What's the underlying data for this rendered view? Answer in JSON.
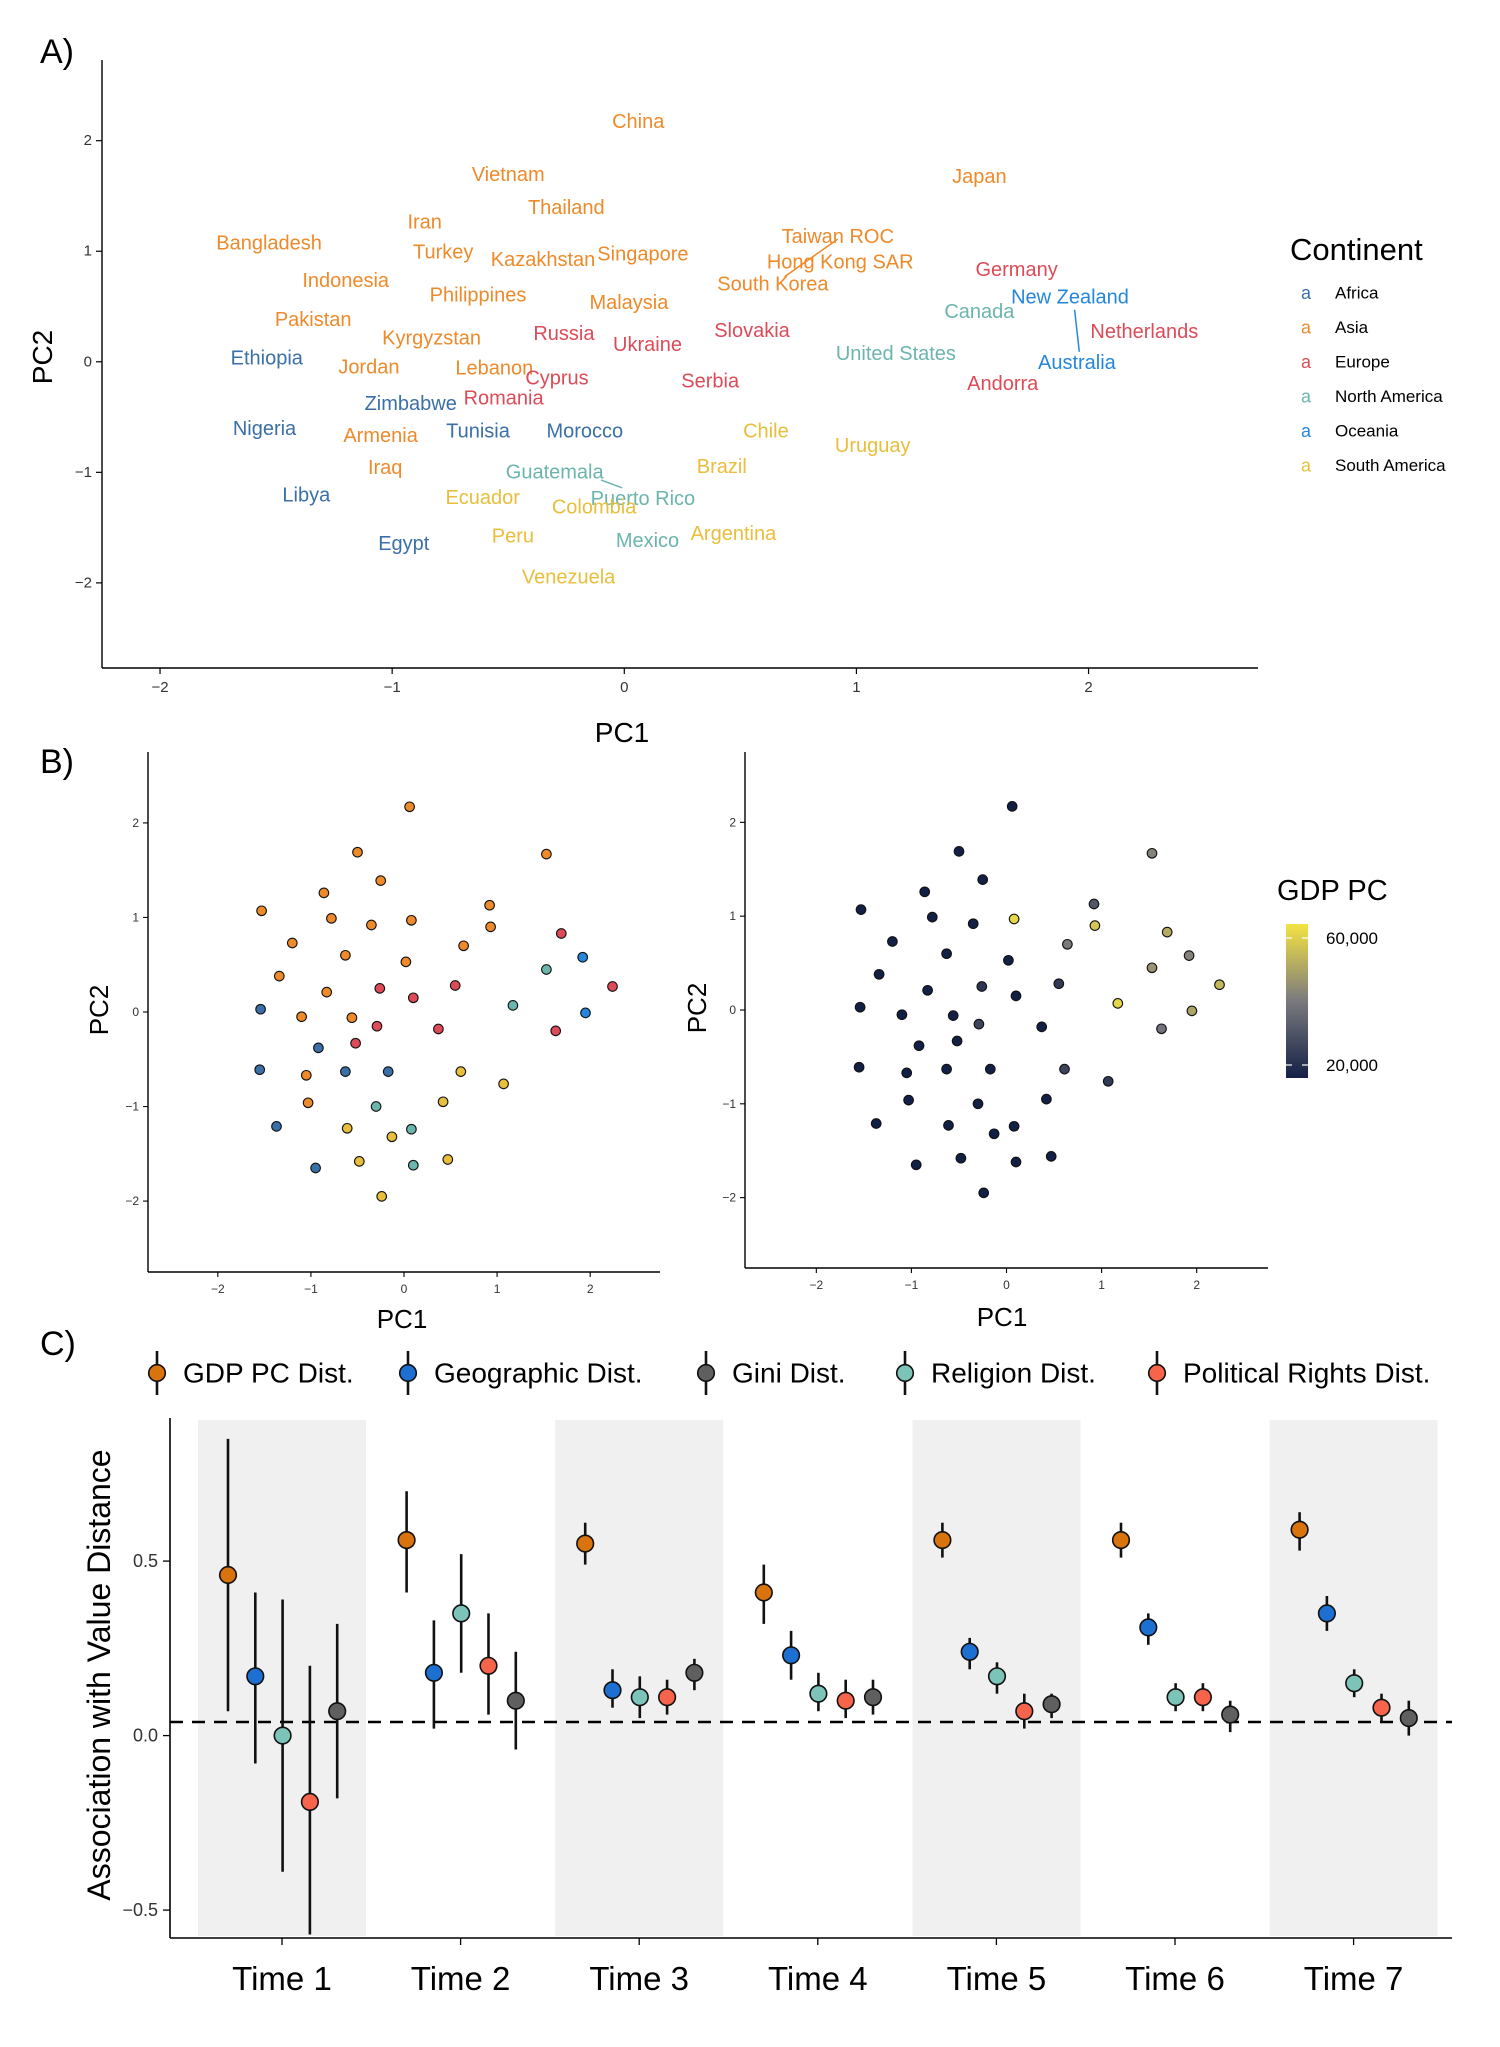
{
  "panels": {
    "a": "A)",
    "b": "B)",
    "c": "C)"
  },
  "colors": {
    "Africa": "#3B6FA7",
    "Asia": "#EE8A2A",
    "Europe": "#DC4B57",
    "North America": "#6BB5AE",
    "Oceania": "#2487DD",
    "South America": "#E8BE3A",
    "gdp_low": "#132046",
    "gdp_mid": "#7A7A7E",
    "gdp_high": "#F5E342",
    "GDP PC Dist.": "#D9730D",
    "Geographic Dist.": "#1D6FD1",
    "Gini Dist.": "#5F5F5F",
    "Religion Dist.": "#7CC3B8",
    "Political Rights Dist.": "#F5644B"
  },
  "chart_data": [
    {
      "id": "A",
      "type": "scatter",
      "title": "",
      "xlabel": "PC1",
      "ylabel": "PC2",
      "xlim": [
        -2.25,
        2.73
      ],
      "ylim": [
        -2.77,
        2.73
      ],
      "xticks": [
        -2,
        -1,
        0,
        1,
        2
      ],
      "yticks": [
        -2,
        -1,
        0,
        1,
        2
      ],
      "xtick_labels": [
        "−2",
        "−1",
        "0",
        "1",
        "2"
      ],
      "ytick_labels": [
        "−2",
        "−1",
        "0",
        "1",
        "2"
      ],
      "legend_title": "Continent",
      "legend_key_glyph": "a",
      "legend": [
        "Africa",
        "Asia",
        "Europe",
        "North America",
        "Oceania",
        "South America"
      ],
      "points": [
        {
          "label": "China",
          "continent": "Asia",
          "x": 0.06,
          "y": 2.17
        },
        {
          "label": "Japan",
          "continent": "Asia",
          "x": 1.53,
          "y": 1.67
        },
        {
          "label": "Vietnam",
          "continent": "Asia",
          "x": -0.5,
          "y": 1.69
        },
        {
          "label": "Iran",
          "continent": "Asia",
          "x": -0.86,
          "y": 1.26
        },
        {
          "label": "Thailand",
          "continent": "Asia",
          "x": -0.25,
          "y": 1.39
        },
        {
          "label": "Taiwan ROC",
          "continent": "Asia",
          "x": 0.92,
          "y": 1.13
        },
        {
          "label": "Bangladesh",
          "continent": "Asia",
          "x": -1.53,
          "y": 1.07
        },
        {
          "label": "Turkey",
          "continent": "Asia",
          "x": -0.78,
          "y": 0.99
        },
        {
          "label": "Kazakhstan",
          "continent": "Asia",
          "x": -0.35,
          "y": 0.92
        },
        {
          "label": "Singapore",
          "continent": "Asia",
          "x": 0.08,
          "y": 0.97
        },
        {
          "label": "Hong Kong SAR",
          "continent": "Asia",
          "x": 0.93,
          "y": 0.9
        },
        {
          "label": "Indonesia",
          "continent": "Asia",
          "x": -1.2,
          "y": 0.73
        },
        {
          "label": "Philippines",
          "continent": "Asia",
          "x": -0.63,
          "y": 0.6
        },
        {
          "label": "South Korea",
          "continent": "Asia",
          "x": 0.64,
          "y": 0.7
        },
        {
          "label": "Malaysia",
          "continent": "Asia",
          "x": 0.02,
          "y": 0.53
        },
        {
          "label": "Pakistan",
          "continent": "Asia",
          "x": -1.34,
          "y": 0.38
        },
        {
          "label": "Kyrgyzstan",
          "continent": "Asia",
          "x": -0.83,
          "y": 0.21
        },
        {
          "label": "Jordan",
          "continent": "Asia",
          "x": -1.1,
          "y": -0.05
        },
        {
          "label": "Lebanon",
          "continent": "Asia",
          "x": -0.56,
          "y": -0.06
        },
        {
          "label": "Armenia",
          "continent": "Asia",
          "x": -1.05,
          "y": -0.67
        },
        {
          "label": "Iraq",
          "continent": "Asia",
          "x": -1.03,
          "y": -0.96
        },
        {
          "label": "Germany",
          "continent": "Europe",
          "x": 1.69,
          "y": 0.83
        },
        {
          "label": "Netherlands",
          "continent": "Europe",
          "x": 2.24,
          "y": 0.27
        },
        {
          "label": "Russia",
          "continent": "Europe",
          "x": -0.26,
          "y": 0.25
        },
        {
          "label": "Ukraine",
          "continent": "Europe",
          "x": 0.1,
          "y": 0.15
        },
        {
          "label": "Slovakia",
          "continent": "Europe",
          "x": 0.55,
          "y": 0.28
        },
        {
          "label": "Cyprus",
          "continent": "Europe",
          "x": -0.29,
          "y": -0.15
        },
        {
          "label": "Serbia",
          "continent": "Europe",
          "x": 0.37,
          "y": -0.18
        },
        {
          "label": "Andorra",
          "continent": "Europe",
          "x": 1.63,
          "y": -0.2
        },
        {
          "label": "Romania",
          "continent": "Europe",
          "x": -0.52,
          "y": -0.33
        },
        {
          "label": "Canada",
          "continent": "North America",
          "x": 1.53,
          "y": 0.45
        },
        {
          "label": "United States",
          "continent": "North America",
          "x": 1.17,
          "y": 0.07
        },
        {
          "label": "Guatemala",
          "continent": "North America",
          "x": -0.3,
          "y": -1.0
        },
        {
          "label": "Puerto Rico",
          "continent": "North America",
          "x": 0.08,
          "y": -1.24
        },
        {
          "label": "Mexico",
          "continent": "North America",
          "x": 0.1,
          "y": -1.62
        },
        {
          "label": "New Zealand",
          "continent": "Oceania",
          "x": 1.92,
          "y": 0.58
        },
        {
          "label": "Australia",
          "continent": "Oceania",
          "x": 1.95,
          "y": -0.01
        },
        {
          "label": "Ethiopia",
          "continent": "Africa",
          "x": -1.54,
          "y": 0.03
        },
        {
          "label": "Zimbabwe",
          "continent": "Africa",
          "x": -0.92,
          "y": -0.38
        },
        {
          "label": "Nigeria",
          "continent": "Africa",
          "x": -1.55,
          "y": -0.61
        },
        {
          "label": "Tunisia",
          "continent": "Africa",
          "x": -0.63,
          "y": -0.63
        },
        {
          "label": "Morocco",
          "continent": "Africa",
          "x": -0.17,
          "y": -0.63
        },
        {
          "label": "Libya",
          "continent": "Africa",
          "x": -1.37,
          "y": -1.21
        },
        {
          "label": "Egypt",
          "continent": "Africa",
          "x": -0.95,
          "y": -1.65
        },
        {
          "label": "Chile",
          "continent": "South America",
          "x": 0.61,
          "y": -0.63
        },
        {
          "label": "Uruguay",
          "continent": "South America",
          "x": 1.07,
          "y": -0.76
        },
        {
          "label": "Brazil",
          "continent": "South America",
          "x": 0.42,
          "y": -0.95
        },
        {
          "label": "Ecuador",
          "continent": "South America",
          "x": -0.61,
          "y": -1.23
        },
        {
          "label": "Colombia",
          "continent": "South America",
          "x": -0.13,
          "y": -1.32
        },
        {
          "label": "Argentina",
          "continent": "South America",
          "x": 0.47,
          "y": -1.56
        },
        {
          "label": "Peru",
          "continent": "South America",
          "x": -0.48,
          "y": -1.58
        },
        {
          "label": "Venezuela",
          "continent": "South America",
          "x": -0.24,
          "y": -1.95
        }
      ],
      "leaders": [
        {
          "from": [
            0.92,
            1.11
          ],
          "to": [
            0.69,
            0.77
          ]
        },
        {
          "from": [
            -0.1,
            -1.07
          ],
          "to": [
            -0.01,
            -1.14
          ]
        },
        {
          "from": [
            1.94,
            0.47
          ],
          "to": [
            1.96,
            0.09
          ]
        }
      ]
    },
    {
      "id": "B-left",
      "type": "scatter",
      "xlabel": "PC1",
      "ylabel": "PC2",
      "xlim": [
        -2.75,
        2.75
      ],
      "ylim": [
        -2.75,
        2.75
      ],
      "xticks": [
        -2,
        -1,
        0,
        1,
        2
      ],
      "yticks": [
        -2,
        -1,
        0,
        1,
        2
      ],
      "xtick_labels": [
        "−2",
        "−1",
        "0",
        "1",
        "2"
      ],
      "ytick_labels": [
        "−2",
        "−1",
        "0",
        "1",
        "2"
      ],
      "color_by": "continent"
    },
    {
      "id": "B-right",
      "type": "scatter",
      "xlabel": "PC1",
      "ylabel": "PC2",
      "xlim": [
        -2.75,
        2.75
      ],
      "ylim": [
        -2.75,
        2.75
      ],
      "xticks": [
        -2,
        -1,
        0,
        1,
        2
      ],
      "yticks": [
        -2,
        -1,
        0,
        1,
        2
      ],
      "xtick_labels": [
        "−2",
        "−1",
        "0",
        "1",
        "2"
      ],
      "ytick_labels": [
        "−2",
        "−1",
        "0",
        "1",
        "2"
      ],
      "color_by": "gdp",
      "legend_title": "GDP PC",
      "colorbar_labels": [
        "60,000",
        "20,000"
      ],
      "colorbar_range": [
        15000,
        65000
      ],
      "gdp_by_label": {
        "Japan": 42000,
        "Taiwan ROC": 30000,
        "Germany": 52000,
        "Netherlands": 55000,
        "Hong Kong SAR": 58000,
        "Singapore": 62000,
        "South Korea": 40000,
        "Canada": 46000,
        "New Zealand": 42000,
        "Australia": 50000,
        "United States": 62000,
        "Andorra": 38000,
        "Slovakia": 22000,
        "Cyprus": 25000,
        "Chile": 25000,
        "Uruguay": 22000,
        "Russia": 21000
      },
      "gdp_default": 13000
    },
    {
      "id": "C",
      "type": "scatter",
      "subtype": "point-errorbar",
      "xlabel": "",
      "ylabel": "Association with Value Distance",
      "categories": [
        "Time 1",
        "Time 2",
        "Time 3",
        "Time 4",
        "Time 5",
        "Time 6",
        "Time 7"
      ],
      "ylim": [
        -0.58,
        0.91
      ],
      "yticks": [
        -0.5,
        0.0,
        0.5
      ],
      "ytick_labels": [
        "−0.5",
        "0.0",
        "0.5"
      ],
      "reference_line": 0,
      "shaded_categories": [
        "Time 1",
        "Time 3",
        "Time 5",
        "Time 7"
      ],
      "legend": [
        "GDP PC Dist.",
        "Geographic Dist.",
        "Gini Dist.",
        "Religion Dist.",
        "Political Rights Dist."
      ],
      "groups": [
        {
          "category": "Time 1",
          "points": [
            {
              "series": "GDP PC Dist.",
              "value": 0.46,
              "lower": 0.07,
              "upper": 0.85
            },
            {
              "series": "Geographic Dist.",
              "value": 0.17,
              "lower": -0.08,
              "upper": 0.41
            },
            {
              "series": "Religion Dist.",
              "value": 0.0,
              "lower": -0.39,
              "upper": 0.39
            },
            {
              "series": "Political Rights Dist.",
              "value": -0.19,
              "lower": -0.57,
              "upper": 0.2
            },
            {
              "series": "Gini Dist.",
              "value": 0.07,
              "lower": -0.18,
              "upper": 0.32
            }
          ]
        },
        {
          "category": "Time 2",
          "points": [
            {
              "series": "GDP PC Dist.",
              "value": 0.56,
              "lower": 0.41,
              "upper": 0.7
            },
            {
              "series": "Geographic Dist.",
              "value": 0.18,
              "lower": 0.02,
              "upper": 0.33
            },
            {
              "series": "Religion Dist.",
              "value": 0.35,
              "lower": 0.18,
              "upper": 0.52
            },
            {
              "series": "Political Rights Dist.",
              "value": 0.2,
              "lower": 0.06,
              "upper": 0.35
            },
            {
              "series": "Gini Dist.",
              "value": 0.1,
              "lower": -0.04,
              "upper": 0.24
            }
          ]
        },
        {
          "category": "Time 3",
          "points": [
            {
              "series": "GDP PC Dist.",
              "value": 0.55,
              "lower": 0.49,
              "upper": 0.61
            },
            {
              "series": "Geographic Dist.",
              "value": 0.13,
              "lower": 0.08,
              "upper": 0.19
            },
            {
              "series": "Religion Dist.",
              "value": 0.11,
              "lower": 0.05,
              "upper": 0.17
            },
            {
              "series": "Political Rights Dist.",
              "value": 0.11,
              "lower": 0.06,
              "upper": 0.16
            },
            {
              "series": "Gini Dist.",
              "value": 0.18,
              "lower": 0.13,
              "upper": 0.22
            }
          ]
        },
        {
          "category": "Time 4",
          "points": [
            {
              "series": "GDP PC Dist.",
              "value": 0.41,
              "lower": 0.32,
              "upper": 0.49
            },
            {
              "series": "Geographic Dist.",
              "value": 0.23,
              "lower": 0.16,
              "upper": 0.3
            },
            {
              "series": "Religion Dist.",
              "value": 0.12,
              "lower": 0.07,
              "upper": 0.18
            },
            {
              "series": "Political Rights Dist.",
              "value": 0.1,
              "lower": 0.05,
              "upper": 0.16
            },
            {
              "series": "Gini Dist.",
              "value": 0.11,
              "lower": 0.06,
              "upper": 0.16
            }
          ]
        },
        {
          "category": "Time 5",
          "points": [
            {
              "series": "GDP PC Dist.",
              "value": 0.56,
              "lower": 0.51,
              "upper": 0.61
            },
            {
              "series": "Geographic Dist.",
              "value": 0.24,
              "lower": 0.19,
              "upper": 0.28
            },
            {
              "series": "Religion Dist.",
              "value": 0.17,
              "lower": 0.12,
              "upper": 0.21
            },
            {
              "series": "Political Rights Dist.",
              "value": 0.07,
              "lower": 0.02,
              "upper": 0.12
            },
            {
              "series": "Gini Dist.",
              "value": 0.09,
              "lower": 0.05,
              "upper": 0.12
            }
          ]
        },
        {
          "category": "Time 6",
          "points": [
            {
              "series": "GDP PC Dist.",
              "value": 0.56,
              "lower": 0.51,
              "upper": 0.61
            },
            {
              "series": "Geographic Dist.",
              "value": 0.31,
              "lower": 0.26,
              "upper": 0.35
            },
            {
              "series": "Religion Dist.",
              "value": 0.11,
              "lower": 0.07,
              "upper": 0.15
            },
            {
              "series": "Political Rights Dist.",
              "value": 0.11,
              "lower": 0.07,
              "upper": 0.15
            },
            {
              "series": "Gini Dist.",
              "value": 0.06,
              "lower": 0.01,
              "upper": 0.1
            }
          ]
        },
        {
          "category": "Time 7",
          "points": [
            {
              "series": "GDP PC Dist.",
              "value": 0.59,
              "lower": 0.53,
              "upper": 0.64
            },
            {
              "series": "Geographic Dist.",
              "value": 0.35,
              "lower": 0.3,
              "upper": 0.4
            },
            {
              "series": "Religion Dist.",
              "value": 0.15,
              "lower": 0.11,
              "upper": 0.19
            },
            {
              "series": "Political Rights Dist.",
              "value": 0.08,
              "lower": 0.04,
              "upper": 0.12
            },
            {
              "series": "Gini Dist.",
              "value": 0.05,
              "lower": 0.0,
              "upper": 0.1
            }
          ]
        }
      ]
    }
  ]
}
